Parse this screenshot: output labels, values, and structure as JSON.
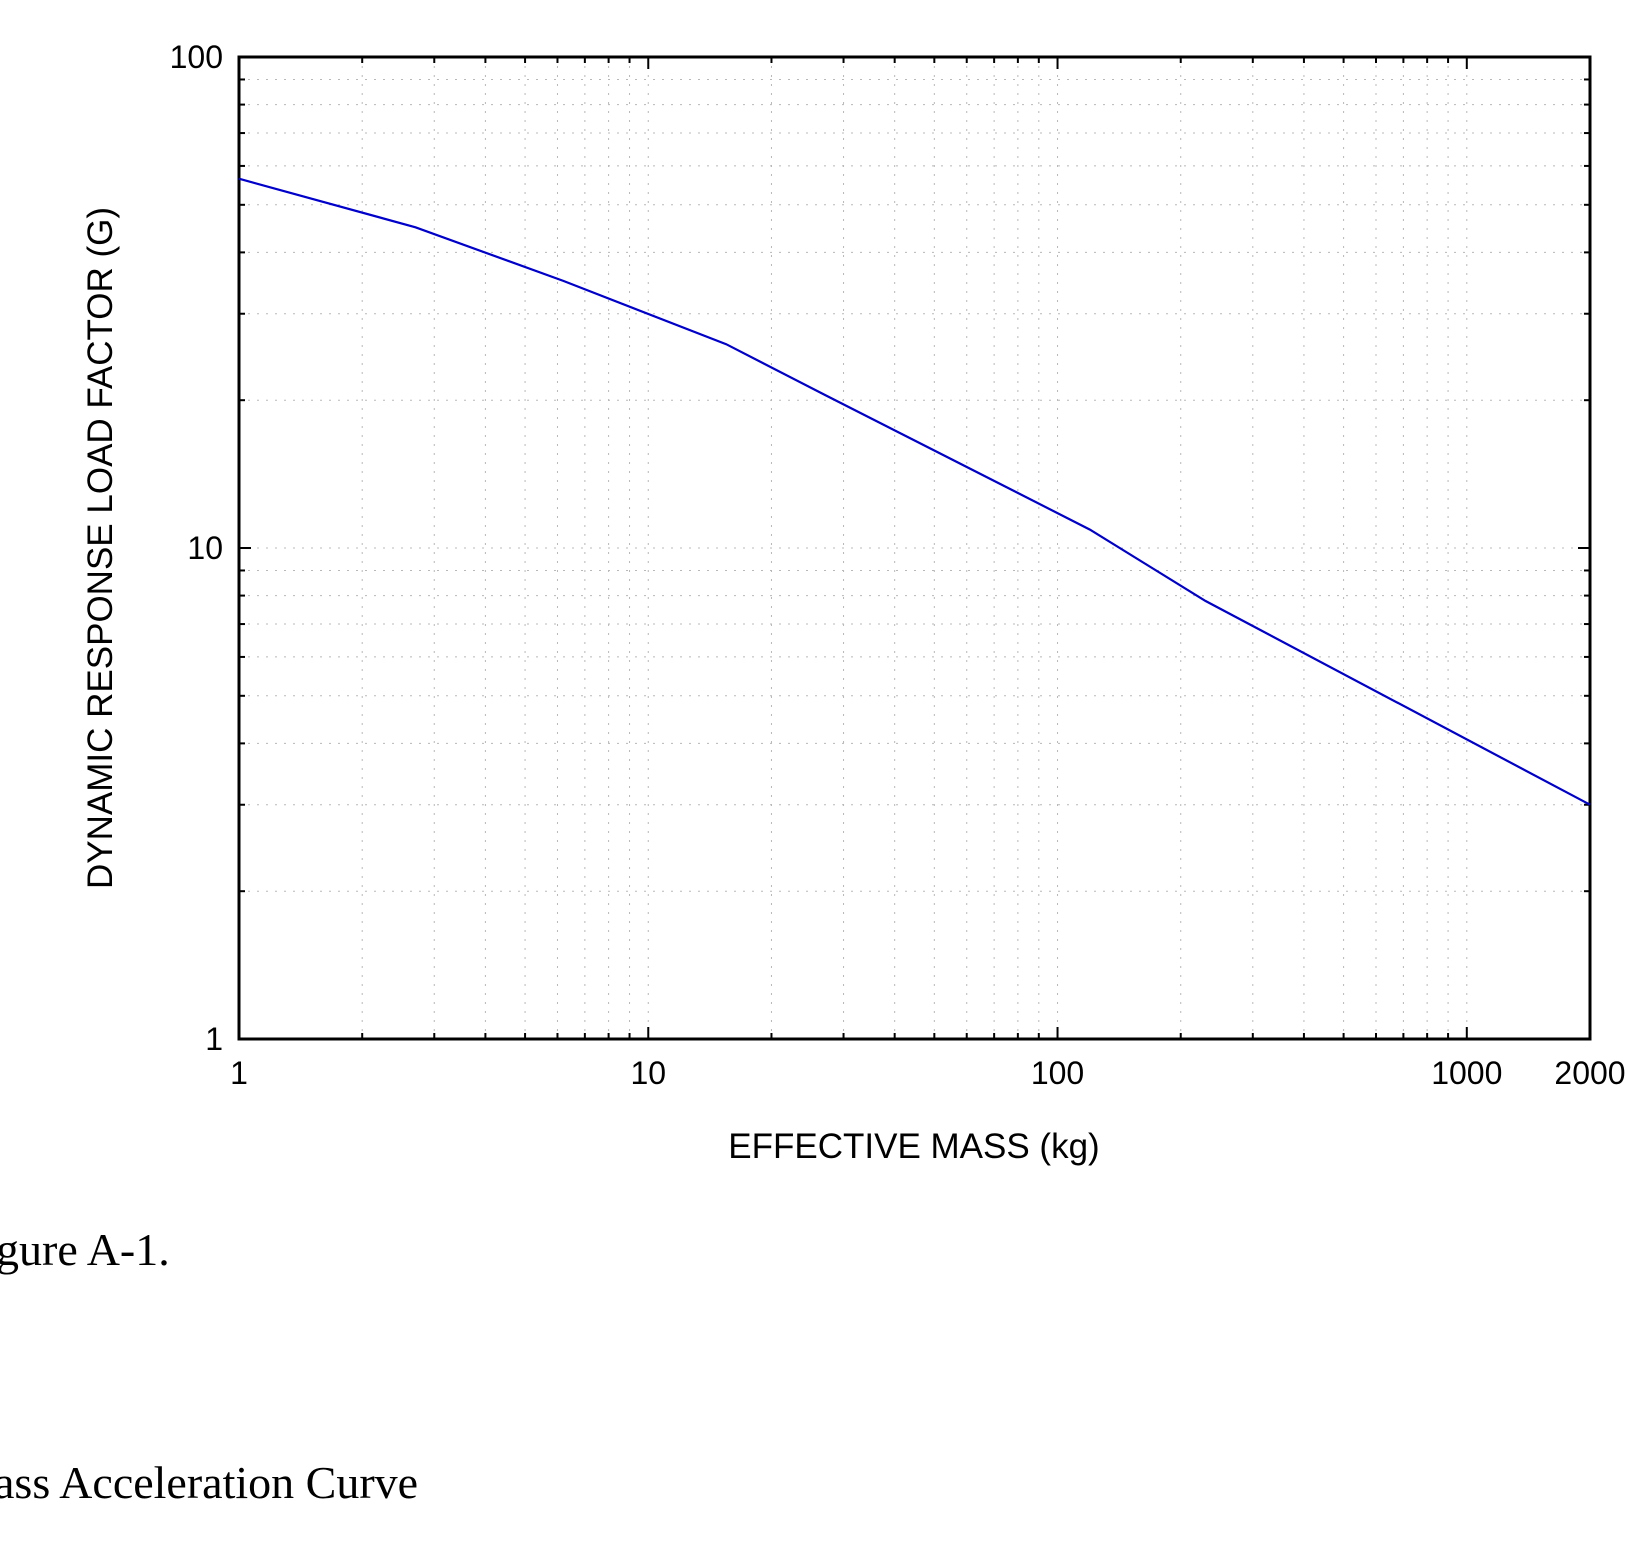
{
  "chart_data": {
    "type": "line",
    "title": "",
    "xlabel": "EFFECTIVE MASS (kg)",
    "ylabel": "DYNAMIC RESPONSE LOAD FACTOR (G)",
    "x_scale": "log",
    "y_scale": "log",
    "xlim": [
      1,
      2000
    ],
    "ylim": [
      1,
      100
    ],
    "x_ticks": [
      {
        "value": 1,
        "label": "1"
      },
      {
        "value": 10,
        "label": "10"
      },
      {
        "value": 100,
        "label": "100"
      },
      {
        "value": 1000,
        "label": "1000"
      },
      {
        "value": 2000,
        "label": "2000"
      }
    ],
    "y_ticks": [
      {
        "value": 1,
        "label": "1"
      },
      {
        "value": 10,
        "label": "10"
      },
      {
        "value": 100,
        "label": "100"
      }
    ],
    "grid": "on (dotted, major and minor)",
    "legend": "none",
    "series": [
      {
        "color": "#0000cc",
        "x": [
          1,
          2.7,
          6.2,
          15.5,
          27,
          50,
          120,
          230,
          2000
        ],
        "y": [
          56.5,
          45,
          35,
          26,
          20.5,
          15.8,
          10.9,
          7.8,
          3.0
        ]
      }
    ]
  },
  "captions": {
    "figure_label": "gure A-1.",
    "figure_title": "ass Acceleration Curve"
  }
}
